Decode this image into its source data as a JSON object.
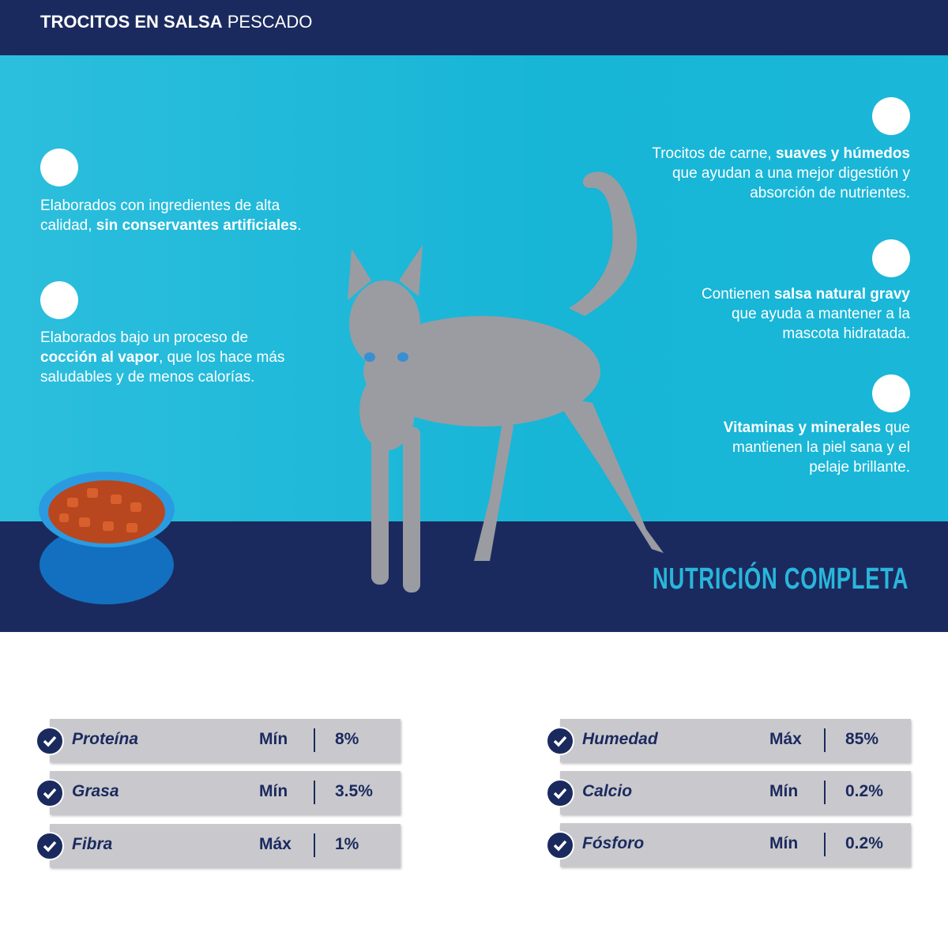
{
  "header": {
    "title_bold": "TROCITOS EN SALSA",
    "title_rest": "PESCADO"
  },
  "features_left": [
    {
      "parts": [
        {
          "text": "Elaborados con ingredientes de alta calidad, ",
          "bold": false
        },
        {
          "text": "sin conservantes artificiales",
          "bold": true
        },
        {
          "text": ".",
          "bold": false
        }
      ]
    },
    {
      "parts": [
        {
          "text": "Elaborados bajo un proceso de ",
          "bold": false
        },
        {
          "text": "cocción al vapor",
          "bold": true
        },
        {
          "text": ", que los hace más saludables y de menos calorías.",
          "bold": false
        }
      ]
    }
  ],
  "features_right": [
    {
      "parts": [
        {
          "text": "Trocitos de carne, ",
          "bold": false
        },
        {
          "text": "suaves y húmedos",
          "bold": true
        },
        {
          "text": " que ayudan a una mejor digestión y absorción de nutrientes.",
          "bold": false
        }
      ]
    },
    {
      "parts": [
        {
          "text": "Contienen ",
          "bold": false
        },
        {
          "text": "salsa natural gravy",
          "bold": true
        },
        {
          "text": " que ayuda a mantener a la mascota hidratada.",
          "bold": false
        }
      ]
    },
    {
      "parts": [
        {
          "text": "Vitaminas y minerales",
          "bold": true
        },
        {
          "text": " que mantienen la piel sana y el pelaje brillante.",
          "bold": false
        }
      ]
    }
  ],
  "tagline": "NUTRICIÓN COMPLETA",
  "nutrition_left": [
    [
      "Proteína",
      "Mín",
      "8%"
    ],
    [
      "Grasa",
      "Mín",
      "3.5%"
    ],
    [
      "Fibra",
      "Máx",
      "1%"
    ]
  ],
  "nutrition_right": [
    [
      "Humedad",
      "Máx",
      "85%"
    ],
    [
      "Calcio",
      "Mín",
      "0.2%"
    ],
    [
      "Fósforo",
      "Mín",
      "0.2%"
    ]
  ]
}
